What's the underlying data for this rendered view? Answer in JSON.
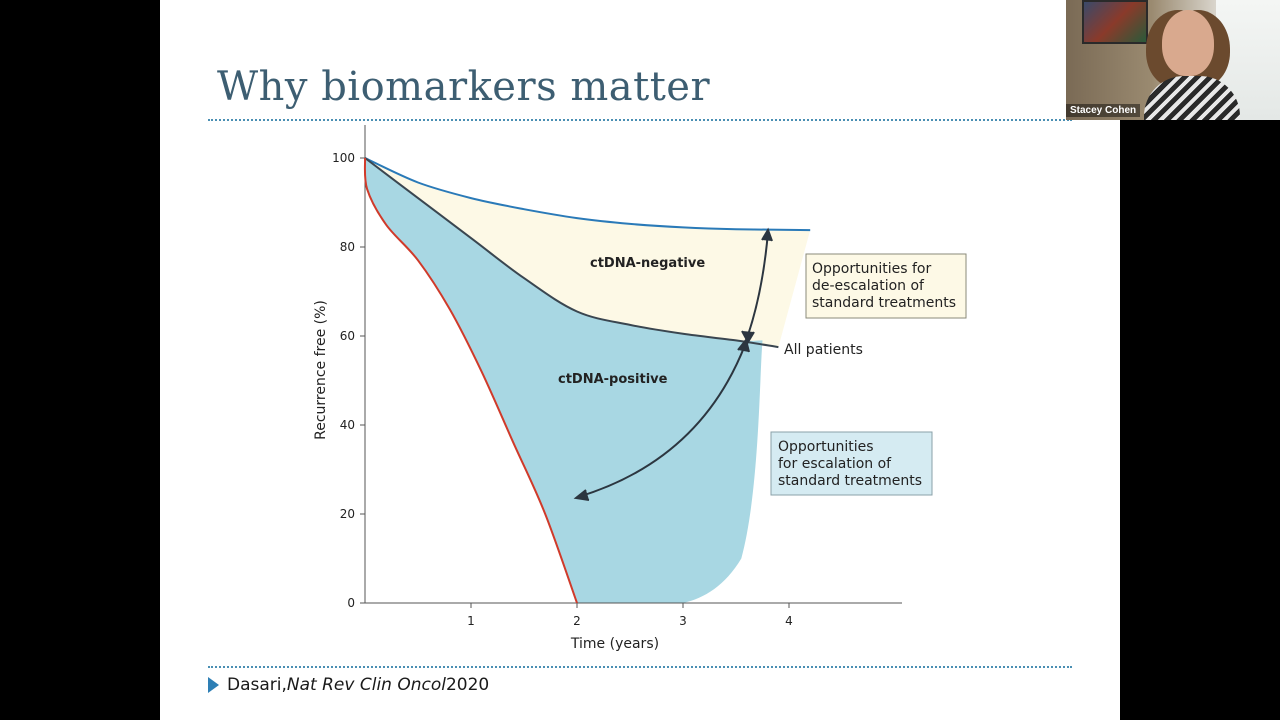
{
  "slide": {
    "title": "Why biomarkers matter",
    "citation": {
      "author": "Dasari, ",
      "journal": "Nat Rev Clin Oncol",
      "year": " 2020"
    }
  },
  "video": {
    "participant_name": "Stacey Cohen"
  },
  "chart_data": {
    "type": "area",
    "title": "",
    "xlabel": "Time (years)",
    "ylabel": "Recurrence free (%)",
    "xlim": [
      0,
      4.5
    ],
    "ylim": [
      0,
      100
    ],
    "x_ticks": [
      "1",
      "2",
      "3",
      "4"
    ],
    "y_ticks": [
      "0",
      "20",
      "40",
      "60",
      "80",
      "100"
    ],
    "grid": false,
    "series": [
      {
        "name": "ctDNA-negative",
        "color": "#2a7ab8",
        "x": [
          0,
          0.5,
          1,
          1.5,
          2,
          2.5,
          3,
          3.5,
          4.2
        ],
        "y": [
          100,
          94.5,
          91,
          88.5,
          86.5,
          85.2,
          84.4,
          84,
          83.8
        ]
      },
      {
        "name": "All patients",
        "color": "#3a4650",
        "x": [
          0,
          0.5,
          1,
          1.5,
          2,
          2.5,
          3,
          3.5,
          3.9
        ],
        "y": [
          100,
          91,
          82,
          73,
          65.5,
          62.5,
          60.5,
          59,
          57.5
        ]
      },
      {
        "name": "ctDNA-positive",
        "color": "#d03a2a",
        "x": [
          0,
          0.02,
          0.2,
          0.5,
          0.8,
          1.1,
          1.4,
          1.7,
          2.0
        ],
        "y": [
          100,
          93,
          85,
          77,
          66,
          52,
          36,
          20,
          0
        ]
      }
    ],
    "region_labels": [
      "ctDNA-negative",
      "ctDNA-positive"
    ],
    "curve_label": "All patients",
    "annotations": [
      "Opportunities for\nde-escalation of\nstandard treatments",
      "Opportunities\nfor escalation of\nstandard treatments"
    ],
    "colors": {
      "negative_fill": "#fdf9e6",
      "positive_fill": "#a8d7e3",
      "escalation_box": "#d5ebf2",
      "deescalation_box": "#fdf9e6"
    }
  }
}
